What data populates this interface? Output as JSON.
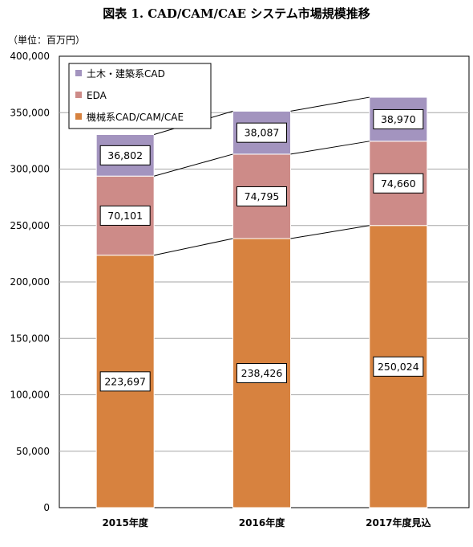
{
  "title": "図表 1. CAD/CAM/CAE システム市場規模推移",
  "unit_label": "（単位：百万円）",
  "chart_data": {
    "type": "bar",
    "stacked": true,
    "categories": [
      "2015年度",
      "2016年度",
      "2017年度見込"
    ],
    "series": [
      {
        "name": "機械系CAD/CAM/CAE",
        "values": [
          223697,
          238426,
          250024
        ],
        "color": "#d7823f",
        "labels": [
          "223,697",
          "238,426",
          "250,024"
        ]
      },
      {
        "name": "EDA",
        "values": [
          70101,
          74795,
          74660
        ],
        "color": "#cd8b88",
        "labels": [
          "70,101",
          "74,795",
          "74,660"
        ]
      },
      {
        "name": "土木・建築系CAD",
        "values": [
          36802,
          38087,
          38970
        ],
        "color": "#a394bf",
        "labels": [
          "36,802",
          "38,087",
          "38,970"
        ]
      }
    ],
    "legend_order": [
      "土木・建築系CAD",
      "EDA",
      "機械系CAD/CAM/CAE"
    ],
    "ylim": [
      0,
      400000
    ],
    "yticks": [
      0,
      50000,
      100000,
      150000,
      200000,
      250000,
      300000,
      350000,
      400000
    ],
    "ytick_labels": [
      "0",
      "50,000",
      "100,000",
      "150,000",
      "200,000",
      "250,000",
      "300,000",
      "350,000",
      "400,000"
    ],
    "grid": true,
    "legend_position": "top-left",
    "series_lines": true
  }
}
